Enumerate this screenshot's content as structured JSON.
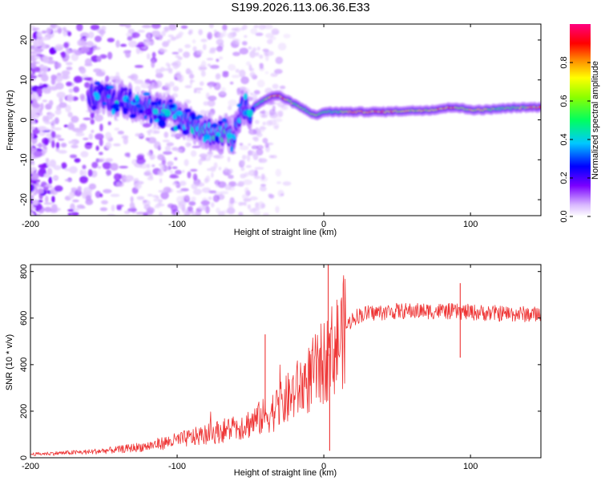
{
  "title": "S199.2026.113.06.36.E33",
  "chart_data": [
    {
      "type": "heatmap",
      "xlabel": "Height of straight line (km)",
      "ylabel": "Frequency (Hz)",
      "xlim": [
        -200,
        148
      ],
      "ylim": [
        -24,
        24
      ],
      "xticks": [
        -200,
        -100,
        0,
        100
      ],
      "xtick_labels": [
        "-200",
        "-100",
        "0",
        "100"
      ],
      "yticks": [
        -20,
        -10,
        0,
        10,
        20
      ],
      "ytick_labels": [
        "-20",
        "-10",
        "0",
        "10",
        "20"
      ],
      "colorbar": {
        "label": "Normalized spectral amplitude",
        "range": [
          0,
          1
        ],
        "ticks": [
          0.0,
          0.2,
          0.4,
          0.6,
          0.8
        ],
        "tick_labels": [
          "0.0",
          "0.2",
          "0.4",
          "0.6",
          "0.8"
        ],
        "colormap": "rainbow (white-violet-blue-cyan-green-yellow-red-magenta)"
      },
      "ridge": {
        "x": [
          -155,
          -140,
          -125,
          -110,
          -100,
          -90,
          -80,
          -70,
          -62,
          -55,
          -50,
          -45,
          -40,
          -35,
          -30,
          -25,
          -20,
          -15,
          -10,
          -5,
          0,
          5,
          10,
          20,
          40,
          60,
          75,
          80,
          85,
          90,
          95,
          100,
          110,
          120,
          130,
          148
        ],
        "y": [
          6,
          5,
          4,
          2,
          1,
          -1,
          -3,
          -3,
          -4,
          3,
          2,
          4,
          5,
          6,
          6,
          5,
          4,
          3,
          2,
          1,
          2,
          2,
          2,
          2,
          2,
          2.3,
          2.5,
          2.8,
          3,
          3.2,
          2.8,
          2.5,
          2.5,
          2.8,
          3,
          3.2
        ],
        "amplitude": [
          0.25,
          0.25,
          0.3,
          0.35,
          0.35,
          0.35,
          0.4,
          0.45,
          0.4,
          0.35,
          0.35,
          0.5,
          0.55,
          0.85,
          0.85,
          0.75,
          0.65,
          0.6,
          0.55,
          0.6,
          0.55,
          0.5,
          0.55,
          0.8,
          0.85,
          0.7,
          0.8,
          0.85,
          0.85,
          0.8,
          0.6,
          0.8,
          0.7,
          0.6,
          0.6,
          0.85
        ]
      },
      "noise_region_x": [
        -200,
        -120
      ]
    },
    {
      "type": "line",
      "xlabel": "Height of straight line (km)",
      "ylabel": "SNR (10 * v/v)",
      "xlim": [
        -200,
        148
      ],
      "ylim": [
        0,
        830
      ],
      "xticks": [
        -200,
        -100,
        0,
        100
      ],
      "xtick_labels": [
        "-200",
        "-100",
        "0",
        "100"
      ],
      "yticks": [
        0,
        200,
        400,
        600,
        800
      ],
      "ytick_labels": [
        "0",
        "200",
        "400",
        "600",
        "800"
      ],
      "color": "#ee3333",
      "envelope": {
        "x": [
          -200,
          -180,
          -160,
          -140,
          -120,
          -100,
          -80,
          -60,
          -50,
          -40,
          -30,
          -20,
          -10,
          0,
          10,
          15,
          20,
          25,
          30,
          40,
          50,
          60,
          80,
          100,
          120,
          148
        ],
        "y": [
          15,
          20,
          25,
          35,
          50,
          75,
          100,
          130,
          150,
          180,
          220,
          280,
          340,
          410,
          500,
          560,
          600,
          615,
          620,
          625,
          630,
          630,
          630,
          625,
          620,
          615
        ]
      },
      "spikes": [
        {
          "x": -40,
          "y": 530
        },
        {
          "x": 3,
          "y": 830
        },
        {
          "x": 4,
          "y": 30
        },
        {
          "x": 93,
          "y": 750
        },
        {
          "x": 93,
          "y": 430
        }
      ]
    }
  ]
}
